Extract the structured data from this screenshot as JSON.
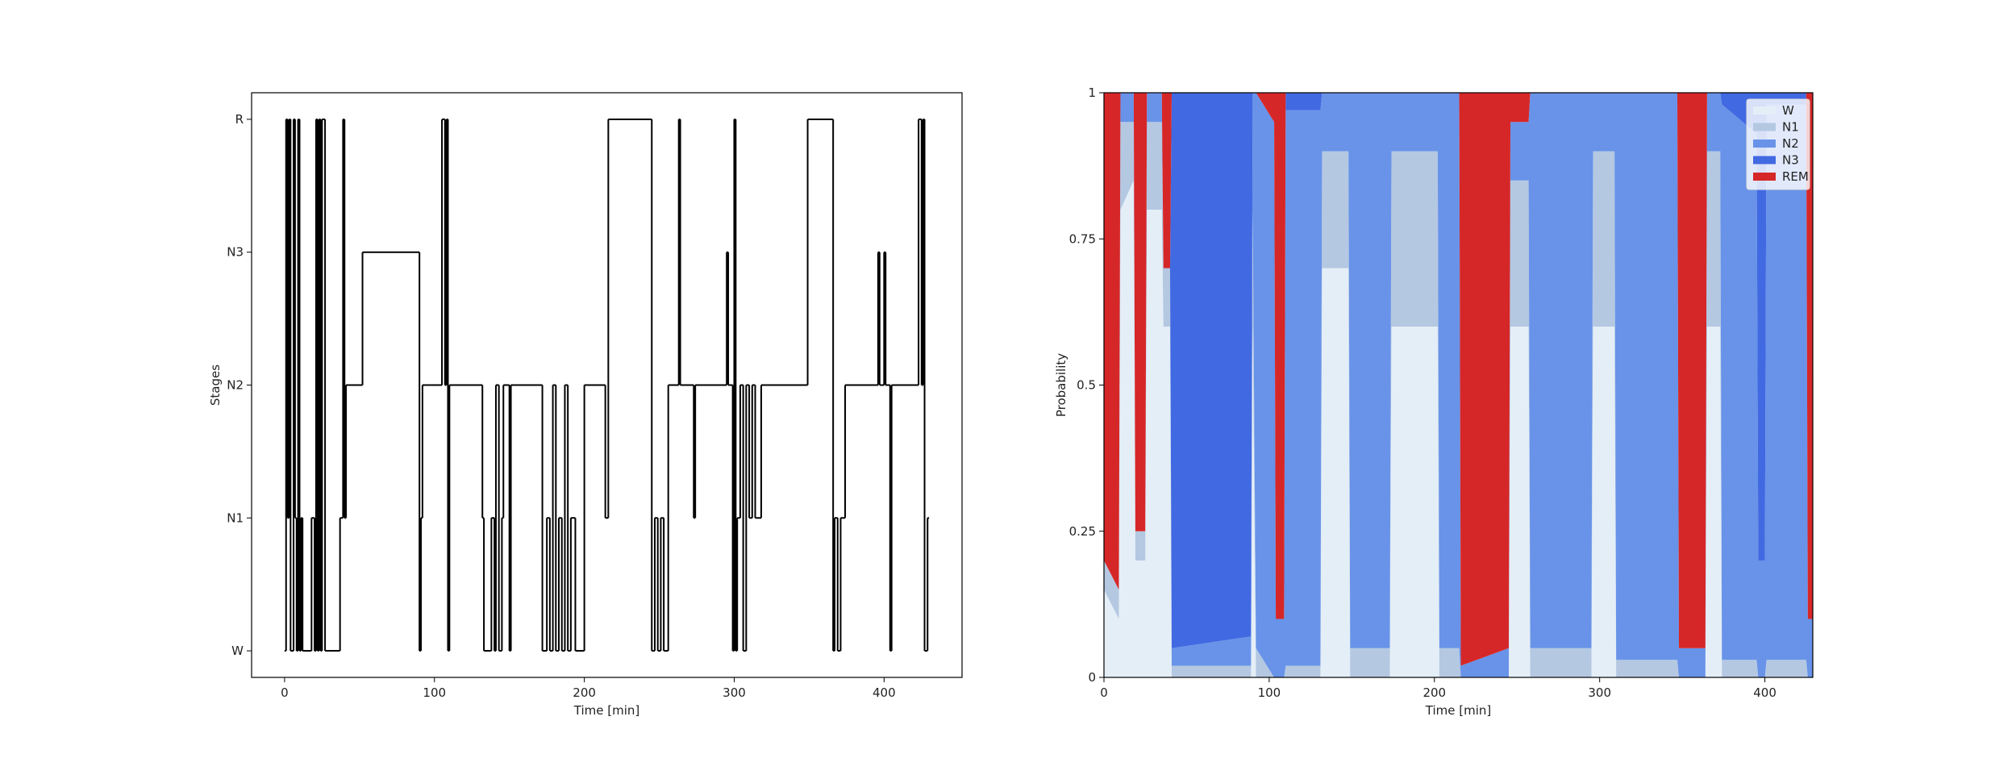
{
  "chart_data": [
    {
      "type": "step",
      "xlabel": "Time [min]",
      "ylabel": "Stages",
      "color": "#000000",
      "x": [
        0,
        1,
        2,
        3,
        4,
        6,
        7,
        8,
        9,
        10,
        11,
        12,
        18,
        20,
        21,
        22,
        23,
        24,
        25,
        27,
        37,
        39,
        40,
        41,
        52,
        90,
        91,
        92,
        105,
        107,
        108,
        109,
        110,
        132,
        133,
        138,
        140,
        141,
        143,
        145,
        146,
        150,
        151,
        172,
        175,
        177,
        179,
        181,
        183,
        185,
        187,
        189,
        191,
        194,
        200,
        214,
        216,
        245,
        247,
        249,
        251,
        253,
        256,
        263,
        264,
        273,
        274,
        295,
        296,
        299,
        300,
        301,
        302,
        304,
        306,
        308,
        310,
        312,
        314,
        318,
        349,
        366,
        367,
        369,
        371,
        374,
        396,
        397,
        400,
        401,
        404,
        405,
        423,
        425,
        426,
        427,
        429,
        430
      ],
      "values": [
        0,
        4,
        1,
        4,
        0,
        4,
        1,
        0,
        4,
        0,
        1,
        0,
        1,
        0,
        4,
        0,
        4,
        0,
        4,
        0,
        1,
        4,
        1,
        2,
        3,
        0,
        1,
        2,
        4,
        2,
        4,
        0,
        2,
        1,
        0,
        1,
        0,
        2,
        0,
        1,
        2,
        0,
        2,
        0,
        1,
        0,
        2,
        0,
        1,
        0,
        2,
        0,
        1,
        0,
        2,
        1,
        4,
        0,
        1,
        0,
        1,
        0,
        2,
        4,
        2,
        1,
        2,
        3,
        2,
        0,
        4,
        0,
        1,
        2,
        0,
        2,
        1,
        2,
        1,
        2,
        4,
        0,
        1,
        0,
        1,
        2,
        3,
        2,
        3,
        2,
        0,
        2,
        4,
        2,
        4,
        0,
        1,
        1
      ],
      "xlim": [
        -22,
        452
      ],
      "xticks": [
        0,
        100,
        200,
        300,
        400
      ],
      "ylim": [
        -0.2,
        4.2
      ],
      "yticks": [
        {
          "value": 0,
          "label": "W"
        },
        {
          "value": 1,
          "label": "N1"
        },
        {
          "value": 2,
          "label": "N2"
        },
        {
          "value": 3,
          "label": "N3"
        },
        {
          "value": 4,
          "label": "R"
        }
      ]
    },
    {
      "type": "stackedarea",
      "xlabel": "Time [min]",
      "ylabel": "Probability",
      "legend": "upper right",
      "x": [
        0,
        9,
        10,
        18,
        19,
        25,
        26,
        35,
        36,
        40,
        41,
        89,
        90,
        92,
        103,
        104,
        109,
        110,
        131,
        132,
        148,
        149,
        173,
        174,
        202,
        203,
        215,
        216,
        245,
        246,
        257,
        258,
        295,
        296,
        309,
        310,
        347,
        348,
        364,
        365,
        373,
        374,
        395,
        396,
        400,
        401,
        425,
        426,
        429
      ],
      "xlim": [
        0,
        429
      ],
      "xticks": [
        0,
        100,
        200,
        300,
        400
      ],
      "ylim": [
        0,
        1
      ],
      "yticks": [
        0,
        0.25,
        0.5,
        0.75,
        1
      ],
      "series": [
        {
          "name": "W",
          "color": "#e4eef7",
          "values": [
            0.15,
            0.1,
            0.8,
            0.85,
            0.2,
            0.2,
            0.8,
            0.8,
            0.6,
            0.6,
            0,
            0,
            0.6,
            0,
            0,
            0,
            0,
            0,
            0,
            0.7,
            0.7,
            0,
            0,
            0.6,
            0.6,
            0,
            0,
            0,
            0,
            0.6,
            0.6,
            0,
            0,
            0.6,
            0.6,
            0,
            0,
            0,
            0,
            0.6,
            0.6,
            0,
            0,
            0,
            0,
            0,
            0,
            0,
            0
          ]
        },
        {
          "name": "N1",
          "color": "#b4c8e2",
          "values": [
            0.05,
            0.05,
            0.15,
            0.1,
            0.05,
            0.05,
            0.15,
            0.15,
            0.1,
            0.1,
            0.02,
            0.02,
            0.2,
            0.05,
            0,
            0,
            0,
            0.02,
            0.02,
            0.2,
            0.2,
            0.05,
            0.05,
            0.3,
            0.3,
            0.05,
            0.05,
            0,
            0,
            0.25,
            0.25,
            0.05,
            0.05,
            0.3,
            0.3,
            0.03,
            0.03,
            0,
            0,
            0.3,
            0.3,
            0.03,
            0.03,
            0,
            0,
            0.03,
            0.03,
            0,
            0
          ]
        },
        {
          "name": "N2",
          "color": "#6893e8",
          "values": [
            0,
            0,
            0.05,
            0.05,
            0,
            0,
            0.05,
            0.05,
            0,
            0,
            0.03,
            0.05,
            0.2,
            0.95,
            0.95,
            0.1,
            0.1,
            0.95,
            0.95,
            0.1,
            0.1,
            0.95,
            0.95,
            0.1,
            0.1,
            0.95,
            0.95,
            0.02,
            0.05,
            0.1,
            0.1,
            0.95,
            0.95,
            0.1,
            0.1,
            0.97,
            0.97,
            0.05,
            0.05,
            0.1,
            0.1,
            0.95,
            0.9,
            0.2,
            0.2,
            0.95,
            0.95,
            0.1,
            0.1
          ]
        },
        {
          "name": "N3",
          "color": "#4169e1",
          "values": [
            0,
            0,
            0,
            0,
            0,
            0,
            0,
            0,
            0,
            0,
            0.95,
            0.93,
            0,
            0,
            0,
            0,
            0,
            0.03,
            0.03,
            0,
            0,
            0,
            0,
            0,
            0,
            0,
            0,
            0,
            0,
            0,
            0,
            0,
            0,
            0,
            0,
            0,
            0,
            0,
            0,
            0,
            0,
            0.02,
            0.07,
            0.8,
            0.8,
            0.02,
            0.02,
            0,
            0
          ]
        },
        {
          "name": "REM",
          "color": "#d62728",
          "values": [
            0.8,
            0.85,
            0,
            0,
            0.75,
            0.75,
            0,
            0,
            0.3,
            0.3,
            0,
            0,
            0,
            0,
            0.05,
            0.9,
            0.9,
            0,
            0,
            0,
            0,
            0,
            0,
            0,
            0,
            0,
            0,
            0.98,
            0.95,
            0.05,
            0.05,
            0,
            0,
            0,
            0,
            0,
            0,
            0.95,
            0.95,
            0,
            0,
            0,
            0,
            0,
            0,
            0,
            0,
            0.9,
            0.9
          ]
        }
      ]
    }
  ]
}
